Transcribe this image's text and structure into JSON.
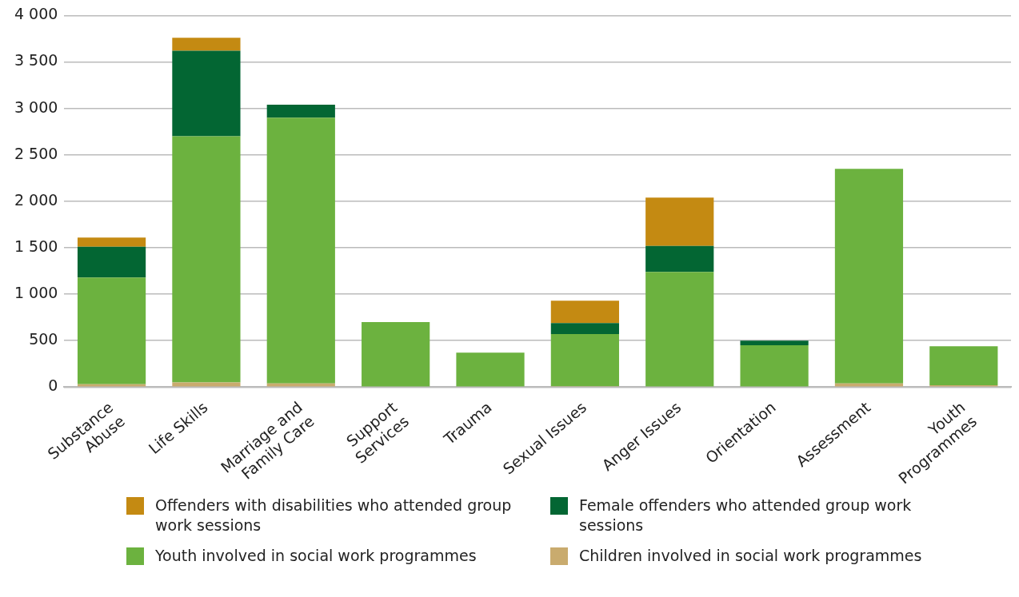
{
  "chart_data": {
    "type": "bar",
    "stacked": true,
    "categories": [
      "Substance\nAbuse",
      "Life Skills",
      "Marriage and\nFamily Care",
      "Support\nServices",
      "Trauma",
      "Sexual Issues",
      "Anger Issues",
      "Orientation",
      "Assessment",
      "Youth\nProgrammes"
    ],
    "series": [
      {
        "name": "Children involved in social work programmes",
        "color": "#c9ab6e",
        "values": [
          30,
          50,
          40,
          0,
          0,
          10,
          0,
          0,
          40,
          20
        ]
      },
      {
        "name": "Youth involved in social work programmes",
        "color": "#6cb23f",
        "values": [
          1150,
          2650,
          2860,
          700,
          370,
          560,
          1240,
          450,
          2310,
          420
        ]
      },
      {
        "name": "Female offenders who attended group work sessions",
        "color": "#036633",
        "values": [
          330,
          920,
          140,
          0,
          0,
          120,
          280,
          50,
          0,
          0
        ]
      },
      {
        "name": "Offenders with disabilities who attended group work sessions",
        "color": "#c48a12",
        "values": [
          100,
          140,
          0,
          0,
          0,
          240,
          520,
          0,
          0,
          0
        ]
      }
    ],
    "ylim": [
      0,
      4000
    ],
    "yticks": [
      0,
      500,
      {
        "value": 1000,
        "label": "1 000"
      },
      {
        "value": 1500,
        "label": "1 500"
      },
      {
        "value": 2000,
        "label": "2 000"
      },
      {
        "value": 2500,
        "label": "2 500"
      },
      {
        "value": 3000,
        "label": "3 000"
      },
      {
        "value": 3500,
        "label": "3 500"
      },
      {
        "value": 4000,
        "label": "4 000"
      }
    ],
    "grid": "y",
    "legend": "bottom"
  }
}
